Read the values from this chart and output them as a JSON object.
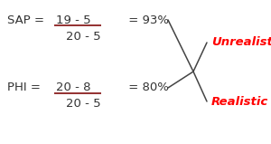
{
  "background_color": "#ffffff",
  "figsize": [
    3.0,
    1.59
  ],
  "dpi": 100,
  "sap_label": "SAP = ",
  "sap_numerator": "19 - 5",
  "sap_denominator": "20 - 5",
  "sap_result": " = 93%",
  "phi_label": "PHI = ",
  "phi_numerator": "20 - 8",
  "phi_denominator": "20 - 5",
  "phi_result": " = 80%",
  "unrealistic_text": "Unrealistic",
  "realistic_text": "Realistic",
  "label_color": "#ff0000",
  "text_color": "#333333",
  "line_color": "#444444",
  "underline_color": "#8b2020",
  "fontsize": 9.5
}
